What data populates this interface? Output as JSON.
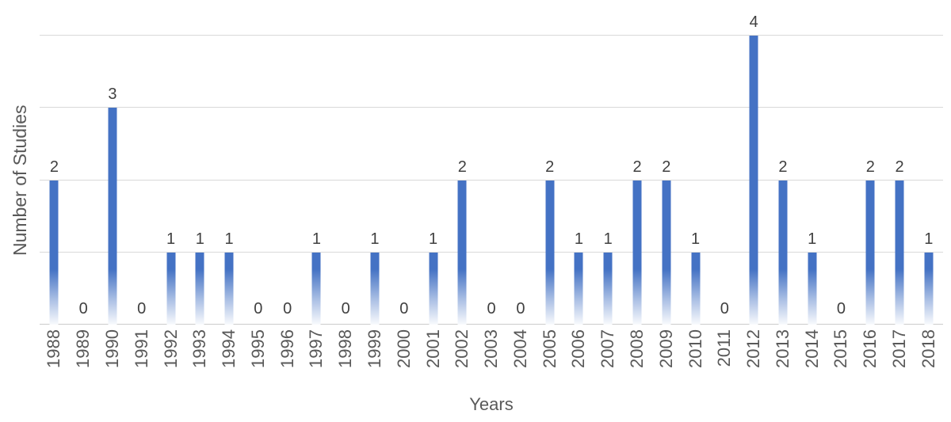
{
  "chart_data": {
    "type": "bar",
    "title": "",
    "xlabel": "Years",
    "ylabel": "Number of Studies",
    "categories": [
      "1988",
      "1989",
      "1990",
      "1991",
      "1992",
      "1993",
      "1994",
      "1995",
      "1996",
      "1997",
      "1998",
      "1999",
      "2000",
      "2001",
      "2002",
      "2003",
      "2004",
      "2005",
      "2006",
      "2007",
      "2008",
      "2009",
      "2010",
      "2011",
      "2012",
      "2013",
      "2014",
      "2015",
      "2016",
      "2017",
      "2018"
    ],
    "values": [
      2,
      0,
      3,
      0,
      1,
      1,
      1,
      0,
      0,
      1,
      0,
      1,
      0,
      1,
      2,
      0,
      0,
      2,
      1,
      1,
      2,
      2,
      1,
      0,
      4,
      2,
      1,
      0,
      2,
      2,
      1
    ],
    "ylim": [
      0,
      4
    ],
    "grid": true,
    "legend": false,
    "data_labels": true,
    "colors": {
      "bar": "#4472C4",
      "data_label": "#404040",
      "axis_text": "#595959",
      "gridline": "#D9D9D9",
      "background": "#FFFFFF"
    }
  }
}
